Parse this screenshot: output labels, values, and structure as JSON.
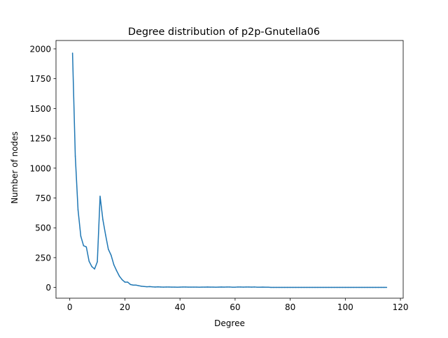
{
  "chart_data": {
    "type": "line",
    "title": "Degree distribution of p2p-Gnutella06",
    "xlabel": "Degree",
    "ylabel": "Number of nodes",
    "xlim": [
      -5,
      121
    ],
    "ylim": [
      -90,
      2070
    ],
    "xticks": [
      0,
      20,
      40,
      60,
      80,
      100,
      120
    ],
    "yticks": [
      0,
      250,
      500,
      750,
      1000,
      1250,
      1500,
      1750,
      2000
    ],
    "grid": false,
    "line_color": "#1f77b4",
    "series": [
      {
        "x": [
          1,
          2,
          3,
          4,
          5,
          6,
          7,
          8,
          9,
          10,
          11,
          12,
          13,
          14,
          15,
          16,
          17,
          18,
          19,
          20,
          21,
          22,
          23,
          24,
          25,
          26,
          27,
          28,
          29,
          30,
          31,
          32,
          33,
          34,
          35,
          36,
          37,
          38,
          39,
          40,
          41,
          42,
          43,
          44,
          45,
          46,
          47,
          48,
          49,
          50,
          51,
          52,
          53,
          54,
          55,
          56,
          57,
          58,
          59,
          60,
          61,
          62,
          63,
          64,
          65,
          66,
          67,
          68,
          69,
          70,
          71,
          72,
          73,
          74,
          75,
          76,
          77,
          78,
          79,
          80,
          81,
          82,
          83,
          84,
          85,
          86,
          87,
          88,
          89,
          90,
          91,
          92,
          93,
          94,
          95,
          96,
          97,
          98,
          99,
          100,
          101,
          102,
          103,
          104,
          105,
          106,
          107,
          108,
          109,
          110,
          111,
          112,
          113,
          114,
          115
        ],
        "y": [
          1965,
          1100,
          650,
          430,
          350,
          340,
          220,
          175,
          155,
          215,
          765,
          570,
          440,
          320,
          270,
          190,
          140,
          95,
          65,
          45,
          45,
          25,
          20,
          20,
          15,
          10,
          8,
          6,
          7,
          5,
          4,
          5,
          4,
          3,
          4,
          4,
          3,
          3,
          2,
          3,
          4,
          4,
          3,
          3,
          3,
          3,
          2,
          3,
          3,
          4,
          3,
          3,
          2,
          3,
          4,
          3,
          4,
          4,
          2,
          2,
          4,
          4,
          3,
          4,
          4,
          3,
          4,
          2,
          2,
          3,
          2,
          2,
          1,
          1,
          1,
          1,
          1,
          1,
          1,
          1,
          1,
          1,
          1,
          1,
          1,
          1,
          1,
          1,
          1,
          1,
          1,
          1,
          1,
          1,
          1,
          1,
          1,
          1,
          1,
          1,
          1,
          1,
          1,
          1,
          1,
          1,
          1,
          1,
          1,
          1,
          1,
          1,
          1,
          1,
          1
        ]
      }
    ]
  }
}
